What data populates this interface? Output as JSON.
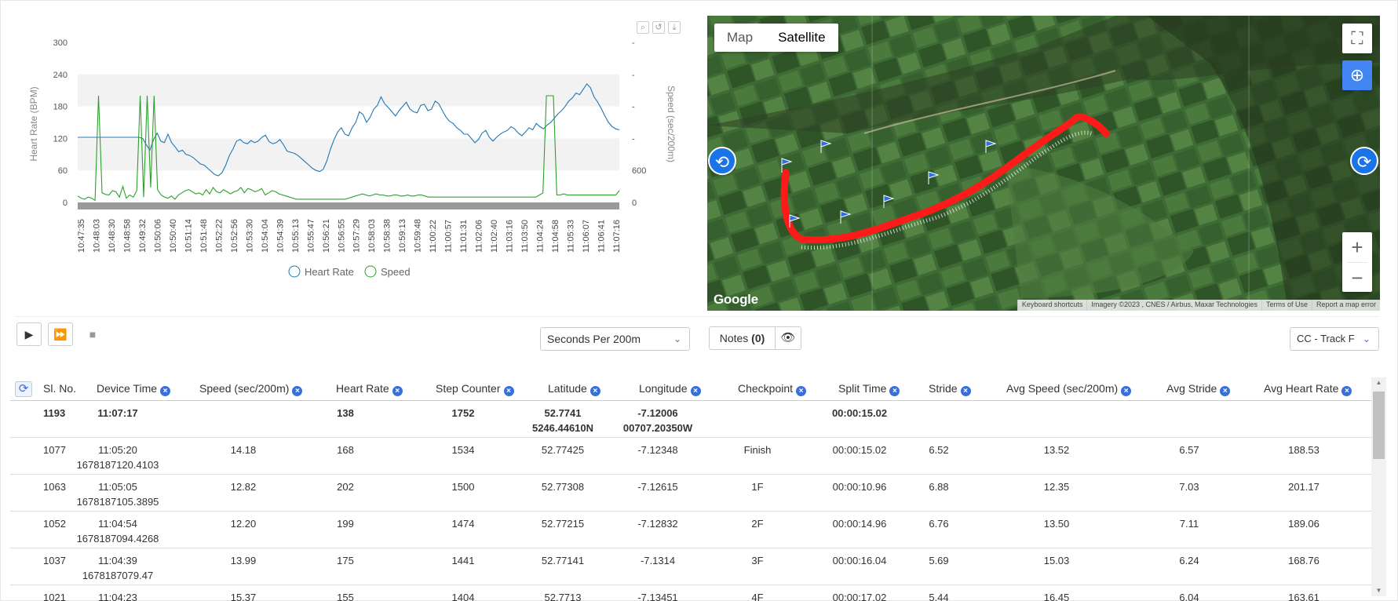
{
  "chart": {
    "y_left_label": "Heart Rate (BPM)",
    "y_right_label": "Speed (sec/200m)",
    "y_left_ticks": [
      "300",
      "240",
      "180",
      "120",
      "60",
      "0"
    ],
    "y_right_ticks": [
      "-",
      "-",
      "-",
      "-",
      "600",
      "0"
    ],
    "x_ticks": [
      "10:47:35",
      "10:48:03",
      "10:48:30",
      "10:48:58",
      "10:49:32",
      "10:50:06",
      "10:50:40",
      "10:51:14",
      "10:51:48",
      "10:52:22",
      "10:52:56",
      "10:53:30",
      "10:54:04",
      "10:54:39",
      "10:55:13",
      "10:55:47",
      "10:56:21",
      "10:56:55",
      "10:57:29",
      "10:58:03",
      "10:58:38",
      "10:59:13",
      "10:59:48",
      "11:00:22",
      "11:00:57",
      "11:01:31",
      "11:02:06",
      "11:02:40",
      "11:03:16",
      "11:03:50",
      "11:04:24",
      "11:04:58",
      "11:05:33",
      "11:06:07",
      "11:06:41",
      "11:07:16"
    ],
    "legend": [
      {
        "name": "Heart Rate",
        "color": "#1f77b4"
      },
      {
        "name": "Speed",
        "color": "#2ca02c"
      }
    ]
  },
  "chart_data": {
    "type": "line",
    "y_left_range": [
      0,
      300
    ],
    "series": [
      {
        "name": "Heart Rate",
        "color": "#1f77b4",
        "axis": "left",
        "values": [
          122,
          122,
          122,
          122,
          122,
          122,
          122,
          122,
          122,
          122,
          122,
          122,
          122,
          122,
          122,
          122,
          122,
          122,
          120,
          108,
          98,
          118,
          130,
          115,
          112,
          128,
          112,
          104,
          95,
          98,
          90,
          88,
          84,
          78,
          72,
          70,
          64,
          58,
          52,
          50,
          56,
          70,
          88,
          100,
          115,
          118,
          112,
          110,
          116,
          112,
          115,
          122,
          126,
          114,
          110,
          112,
          118,
          108,
          96,
          94,
          92,
          88,
          82,
          76,
          70,
          64,
          60,
          58,
          62,
          78,
          100,
          118,
          132,
          140,
          128,
          125,
          140,
          150,
          170,
          165,
          150,
          160,
          175,
          182,
          198,
          185,
          178,
          170,
          162,
          172,
          180,
          188,
          175,
          170,
          168,
          182,
          184,
          172,
          175,
          190,
          185,
          172,
          160,
          152,
          148,
          140,
          135,
          128,
          128,
          120,
          112,
          118,
          130,
          135,
          122,
          115,
          122,
          128,
          132,
          135,
          142,
          138,
          130,
          125,
          132,
          140,
          136,
          148,
          142,
          138,
          145,
          150,
          158,
          166,
          172,
          180,
          190,
          196,
          205,
          202,
          212,
          222,
          215,
          198,
          188,
          176,
          162,
          150,
          142,
          138,
          136
        ]
      },
      {
        "name": "Speed",
        "color": "#2ca02c",
        "axis": "left",
        "values": [
          12,
          8,
          6,
          10,
          8,
          4,
          200,
          18,
          15,
          14,
          22,
          20,
          10,
          30,
          8,
          14,
          10,
          22,
          200,
          10,
          200,
          28,
          200,
          24,
          14,
          10,
          8,
          12,
          6,
          14,
          18,
          22,
          24,
          20,
          16,
          18,
          14,
          24,
          16,
          28,
          20,
          18,
          24,
          20,
          16,
          20,
          22,
          28,
          18,
          26,
          24,
          20,
          22,
          26,
          14,
          18,
          22,
          20,
          16,
          14,
          12,
          10,
          8,
          6,
          6,
          6,
          6,
          6,
          6,
          6,
          6,
          6,
          6,
          6,
          6,
          6,
          6,
          6,
          8,
          10,
          12,
          14,
          16,
          14,
          12,
          14,
          16,
          14,
          14,
          12,
          12,
          14,
          14,
          12,
          12,
          14,
          12,
          12,
          14,
          14,
          12,
          10,
          10,
          10,
          10,
          10,
          10,
          10,
          10,
          10,
          10,
          10,
          10,
          10,
          10,
          10,
          10,
          10,
          10,
          10,
          10,
          10,
          10,
          10,
          10,
          10,
          10,
          10,
          10,
          10,
          10,
          10,
          10,
          14,
          18,
          200,
          200,
          200,
          14,
          14,
          16,
          14,
          14,
          14,
          14,
          14,
          14,
          14,
          14,
          14,
          14,
          14,
          14,
          14,
          14,
          14,
          22
        ]
      }
    ]
  },
  "map": {
    "tab_map": "Map",
    "tab_satellite": "Satellite",
    "google": "Google",
    "attribution": [
      "Keyboard shortcuts",
      "Imagery ©2023 , CNES / Airbus, Maxar Technologies",
      "Terms of Use",
      "Report a map error"
    ]
  },
  "toolbar": {
    "speed_unit": "Seconds Per 200m",
    "notes_label": "Notes",
    "notes_count": "(0)",
    "track": "CC - Track F"
  },
  "table": {
    "headers": [
      "Sl. No.",
      "Device Time",
      "Speed (sec/200m)",
      "Heart Rate",
      "Step Counter",
      "Latitude",
      "Longitude",
      "Checkpoint",
      "Split Time",
      "Stride",
      "Avg Speed (sec/200m)",
      "Avg Stride",
      "Avg Heart Rate"
    ],
    "rows": [
      {
        "sl": "1193",
        "time": "11:07:17",
        "time2": "",
        "speed": "",
        "hr": "138",
        "steps": "1752",
        "lat": "52.7741",
        "lat2": "5246.44610N",
        "lon": "-7.12006",
        "lon2": "00707.20350W",
        "cp": "",
        "split": "00:00:15.02",
        "stride": "",
        "avg_speed": "",
        "avg_stride": "",
        "avg_hr": ""
      },
      {
        "sl": "1077",
        "time": "11:05:20",
        "time2": "1678187120.4103",
        "speed": "14.18",
        "hr": "168",
        "steps": "1534",
        "lat": "52.77425",
        "lat2": "",
        "lon": "-7.12348",
        "lon2": "",
        "cp": "Finish",
        "split": "00:00:15.02",
        "stride": "6.52",
        "avg_speed": "13.52",
        "avg_stride": "6.57",
        "avg_hr": "188.53"
      },
      {
        "sl": "1063",
        "time": "11:05:05",
        "time2": "1678187105.3895",
        "speed": "12.82",
        "hr": "202",
        "steps": "1500",
        "lat": "52.77308",
        "lat2": "",
        "lon": "-7.12615",
        "lon2": "",
        "cp": "1F",
        "split": "00:00:10.96",
        "stride": "6.88",
        "avg_speed": "12.35",
        "avg_stride": "7.03",
        "avg_hr": "201.17"
      },
      {
        "sl": "1052",
        "time": "11:04:54",
        "time2": "1678187094.4268",
        "speed": "12.20",
        "hr": "199",
        "steps": "1474",
        "lat": "52.77215",
        "lat2": "",
        "lon": "-7.12832",
        "lon2": "",
        "cp": "2F",
        "split": "00:00:14.96",
        "stride": "6.76",
        "avg_speed": "13.50",
        "avg_stride": "7.11",
        "avg_hr": "189.06"
      },
      {
        "sl": "1037",
        "time": "11:04:39",
        "time2": "1678187079.47",
        "speed": "13.99",
        "hr": "175",
        "steps": "1441",
        "lat": "52.77141",
        "lat2": "",
        "lon": "-7.1314",
        "lon2": "",
        "cp": "3F",
        "split": "00:00:16.04",
        "stride": "5.69",
        "avg_speed": "15.03",
        "avg_stride": "6.24",
        "avg_hr": "168.76"
      },
      {
        "sl": "1021",
        "time": "11:04:23",
        "time2": "",
        "speed": "15.37",
        "hr": "155",
        "steps": "1404",
        "lat": "52.7713",
        "lat2": "",
        "lon": "-7.13451",
        "lon2": "",
        "cp": "4F",
        "split": "00:00:17.02",
        "stride": "5.44",
        "avg_speed": "16.45",
        "avg_stride": "6.04",
        "avg_hr": "163.61"
      }
    ]
  }
}
